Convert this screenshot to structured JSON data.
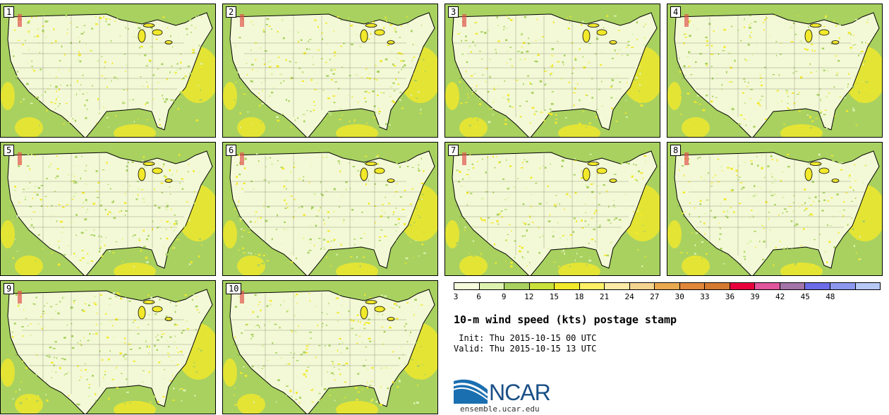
{
  "panels": [
    {
      "label": "1"
    },
    {
      "label": "2"
    },
    {
      "label": "3"
    },
    {
      "label": "4"
    },
    {
      "label": "5"
    },
    {
      "label": "6"
    },
    {
      "label": "7"
    },
    {
      "label": "8"
    },
    {
      "label": "9"
    },
    {
      "label": "10"
    }
  ],
  "colorbar": {
    "colors": [
      "#f5fbdc",
      "#dff3b0",
      "#a8d160",
      "#c9e13a",
      "#f2e92a",
      "#fff066",
      "#fbeba6",
      "#f5d48f",
      "#e9a94e",
      "#e0873a",
      "#d47a30",
      "#e8003c",
      "#e0559d",
      "#a374a8",
      "#6c6ce8",
      "#8c98ee",
      "#b8c8f5"
    ],
    "labels": [
      "3",
      "6",
      "9",
      "12",
      "15",
      "18",
      "21",
      "24",
      "27",
      "30",
      "33",
      "36",
      "39",
      "42",
      "45",
      "48"
    ]
  },
  "title": "10-m wind speed (kts) postage stamp",
  "init": " Init: Thu 2015-10-15 00 UTC",
  "valid": "Valid: Thu 2015-10-15 13 UTC",
  "logo_text": "NCAR",
  "url": "ensemble.ucar.edu",
  "map_colors": {
    "land_light": "#f3f9d6",
    "land_mid": "#dff3b0",
    "land_green": "#a8d160",
    "yellow": "#f2e92a",
    "ocean": "#a8d160",
    "red": "#e0554d",
    "lines": "#333333"
  }
}
